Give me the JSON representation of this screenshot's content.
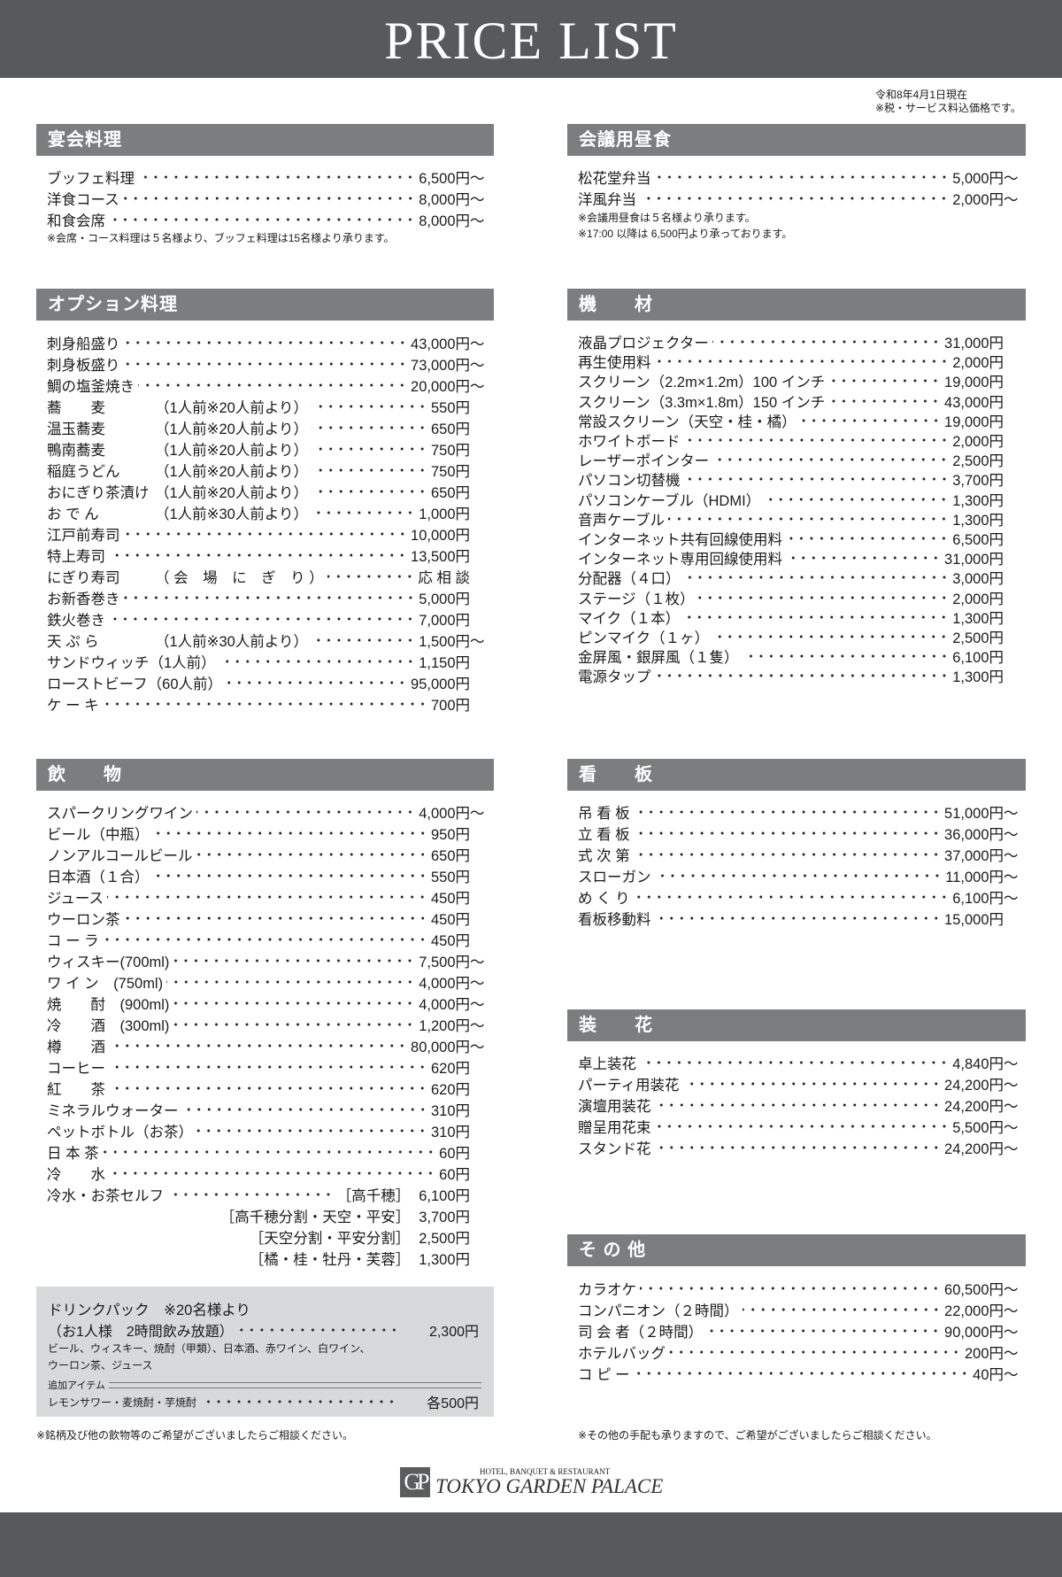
{
  "header": {
    "title": "PRICE LIST"
  },
  "as_of": {
    "date": "令和8年4月1日現在",
    "tax_note": "※税・サービス料込価格です。"
  },
  "sections": {
    "banquet": {
      "title": "宴会料理",
      "items": [
        {
          "label": "ブッフェ料理",
          "price": "6,500円",
          "tilde": "〜"
        },
        {
          "label": "洋食コース",
          "price": "8,000円",
          "tilde": "〜"
        },
        {
          "label": "和食会席",
          "price": "8,000円",
          "tilde": "〜"
        }
      ],
      "notes": [
        "※会席・コース料理は５名様より、ブッフェ料理は15名様より承ります。"
      ]
    },
    "options": {
      "title": "オプション料理",
      "items": [
        {
          "label": "刺身船盛り",
          "price": "43,000円",
          "tilde": "〜"
        },
        {
          "label": "刺身板盛り",
          "price": "73,000円",
          "tilde": "〜"
        },
        {
          "label": "鯛の塩釜焼き",
          "price": "20,000円",
          "tilde": "〜"
        },
        {
          "label": "蕎　　麦",
          "note": "（1人前※20人前より）",
          "price": "550円"
        },
        {
          "label": "温玉蕎麦",
          "note": "（1人前※20人前より）",
          "price": "650円"
        },
        {
          "label": "鴨南蕎麦",
          "note": "（1人前※20人前より）",
          "price": "750円"
        },
        {
          "label": "稲庭うどん",
          "note": "（1人前※20人前より）",
          "price": "750円"
        },
        {
          "label": "おにぎり茶漬け",
          "note": "（1人前※20人前より）",
          "price": "650円"
        },
        {
          "label": "お で ん",
          "note": "（1人前※30人前より）",
          "price": "1,000円"
        },
        {
          "label": "江戸前寿司",
          "price": "10,000円"
        },
        {
          "label": "特上寿司",
          "price": "13,500円"
        },
        {
          "label": "にぎり寿司",
          "note": "（ 会　場　に　ぎ　り ）",
          "price": "応 相 談"
        },
        {
          "label": "お新香巻き",
          "price": "5,000円"
        },
        {
          "label": "鉄火巻き",
          "price": "7,000円"
        },
        {
          "label": "天 ぷ ら",
          "note": "（1人前※30人前より）",
          "price": "1,500円",
          "tilde": "〜"
        },
        {
          "label": "サンドウィッチ（1人前）",
          "price": "1,150円"
        },
        {
          "label": "ローストビーフ（60人前）",
          "price": "95,000円"
        },
        {
          "label": "ケ ー キ",
          "price": "700円"
        }
      ]
    },
    "drinks": {
      "title": "飲　　物",
      "items": [
        {
          "label": "スパークリングワイン",
          "price": "4,000円",
          "tilde": "〜"
        },
        {
          "label": "ビール（中瓶）",
          "price": "950円"
        },
        {
          "label": "ノンアルコールビール",
          "price": "650円"
        },
        {
          "label": "日本酒（１合）",
          "price": "550円"
        },
        {
          "label": "ジュース",
          "price": "450円"
        },
        {
          "label": "ウーロン茶",
          "price": "450円"
        },
        {
          "label": "コ ー ラ",
          "price": "450円"
        },
        {
          "label": "ウィスキー(700ml)",
          "price": "7,500円",
          "tilde": "〜"
        },
        {
          "label": "ワ イ ン　(750ml)",
          "price": "4,000円",
          "tilde": "〜"
        },
        {
          "label": "焼　　酎　(900ml)",
          "price": "4,000円",
          "tilde": "〜"
        },
        {
          "label": "冷　　酒　(300ml)",
          "price": "1,200円",
          "tilde": "〜"
        },
        {
          "label": "樽　　酒",
          "price": "80,000円",
          "tilde": "〜"
        },
        {
          "label": "コーヒー",
          "price": "620円"
        },
        {
          "label": "紅　　茶",
          "price": "620円"
        },
        {
          "label": "ミネラルウォーター",
          "price": "310円"
        },
        {
          "label": "ペットボトル（お茶）",
          "price": "310円"
        },
        {
          "label": "日 本 茶",
          "price": "60円"
        },
        {
          "label": "冷　　水",
          "price": "60円"
        },
        {
          "label": "冷水・お茶セルフ",
          "bracket": "［高千穂］",
          "price": "6,100円"
        },
        {
          "label": "",
          "bracket": "［高千穂分割・天空・平安］",
          "price": "3,700円"
        },
        {
          "label": "",
          "bracket": "［天空分割・平安分割］",
          "price": "2,500円"
        },
        {
          "label": "",
          "bracket": "［橘・桂・牡丹・芙蓉］",
          "price": "1,300円"
        }
      ]
    },
    "drink_pack": {
      "title": "ドリンクパック　※20名様より",
      "plan": "（お1人様　2時間飲み放題）",
      "plan_price": "2,300円",
      "included": [
        "ビール、ウィスキー、焼酎（甲類）、日本酒、赤ワイン、白ワイン、",
        "ウーロン茶、ジュース"
      ],
      "addon_label": "追加アイテム",
      "addon_items": "レモンサワー・麦焼酎・芋焼酎",
      "addon_price": "各500円"
    },
    "drinks_footer": "※銘柄及び他の飲物等のご希望がございましたらご相談ください。",
    "lunch": {
      "title": "会議用昼食",
      "items": [
        {
          "label": "松花堂弁当",
          "price": "5,000円",
          "tilde": "〜"
        },
        {
          "label": "洋風弁当",
          "price": "2,000円",
          "tilde": "〜"
        }
      ],
      "notes": [
        "※会議用昼食は５名様より承ります。",
        "※17:00 以降は 6,500円より承っております。"
      ]
    },
    "equipment": {
      "title": "機　　材",
      "items": [
        {
          "label": "液晶プロジェクター",
          "price": "31,000円"
        },
        {
          "label": "再生使用料",
          "price": "2,000円"
        },
        {
          "label": "スクリーン（2.2m×1.2m）100 インチ",
          "price": "19,000円"
        },
        {
          "label": "スクリーン（3.3m×1.8m）150 インチ",
          "price": "43,000円"
        },
        {
          "label": "常設スクリーン（天空・桂・橘）",
          "price": "19,000円"
        },
        {
          "label": "ホワイトボード",
          "price": "2,000円"
        },
        {
          "label": "レーザーポインター",
          "price": "2,500円"
        },
        {
          "label": "パソコン切替機",
          "price": "3,700円"
        },
        {
          "label": "パソコンケーブル（HDMI）",
          "price": "1,300円"
        },
        {
          "label": "音声ケーブル",
          "price": "1,300円"
        },
        {
          "label": "インターネット共有回線使用料",
          "price": "6,500円"
        },
        {
          "label": "インターネット専用回線使用料",
          "price": "31,000円"
        },
        {
          "label": "分配器（４口）",
          "price": "3,000円"
        },
        {
          "label": "ステージ（１枚）",
          "price": "2,000円"
        },
        {
          "label": "マイク（１本）",
          "price": "1,300円"
        },
        {
          "label": "ピンマイク（１ヶ）",
          "price": "2,500円"
        },
        {
          "label": "金屏風・銀屏風（１隻）",
          "price": "6,100円"
        },
        {
          "label": "電源タップ",
          "price": "1,300円"
        }
      ]
    },
    "signs": {
      "title": "看　　板",
      "items": [
        {
          "label": "吊 看 板",
          "price": "51,000円",
          "tilde": "〜"
        },
        {
          "label": "立 看 板",
          "price": "36,000円",
          "tilde": "〜"
        },
        {
          "label": "式 次 第",
          "price": "37,000円",
          "tilde": "〜"
        },
        {
          "label": "スローガン",
          "price": "11,000円",
          "tilde": "〜"
        },
        {
          "label": "め く り",
          "price": "6,100円",
          "tilde": "〜"
        },
        {
          "label": "看板移動料",
          "price": "15,000円"
        }
      ]
    },
    "flowers": {
      "title": "装　　花",
      "items": [
        {
          "label": "卓上装花",
          "price": "4,840円",
          "tilde": "〜"
        },
        {
          "label": "パーティ用装花",
          "price": "24,200円",
          "tilde": "〜"
        },
        {
          "label": "演壇用装花",
          "price": "24,200円",
          "tilde": "〜"
        },
        {
          "label": "贈呈用花束",
          "price": "5,500円",
          "tilde": "〜"
        },
        {
          "label": "スタンド花",
          "price": "24,200円",
          "tilde": "〜"
        }
      ]
    },
    "other": {
      "title": "そ の 他",
      "items": [
        {
          "label": "カラオケ",
          "price": "60,500円",
          "tilde": "〜"
        },
        {
          "label": "コンパニオン（２時間）",
          "price": "22,000円",
          "tilde": "〜"
        },
        {
          "label": "司 会 者（２時間）",
          "price": "90,000円",
          "tilde": "〜"
        },
        {
          "label": "ホテルバッグ",
          "price": "200円",
          "tilde": "〜"
        },
        {
          "label": "コ ピ ー",
          "price": "40円",
          "tilde": "〜"
        }
      ]
    },
    "other_footer": "※その他の手配も承りますので、ご希望がございましたらご相談ください。"
  },
  "logo": {
    "mark": "GP",
    "tagline": "HOTEL, BANQUET & RESTAURANT",
    "name": "TOKYO GARDEN PALACE"
  },
  "colors": {
    "band": "#58595b",
    "section_header": "#7b7d7f",
    "drink_pack_bg": "#d8d9da"
  }
}
